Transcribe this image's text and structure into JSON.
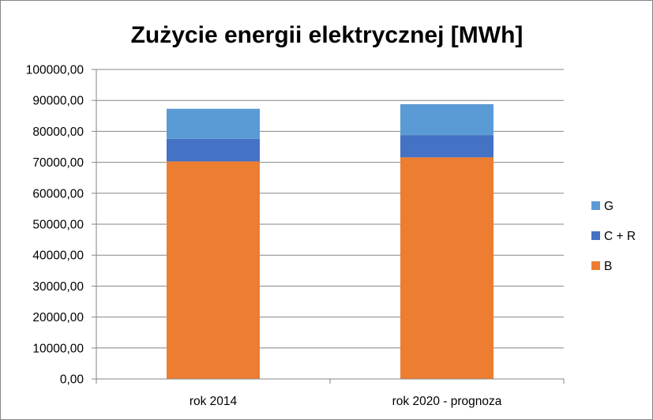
{
  "chart_data": {
    "type": "bar",
    "stacked": true,
    "title": "Zużycie energii elektrycznej [MWh]",
    "xlabel": "",
    "ylabel": "",
    "categories": [
      "rok 2014",
      "rok 2020 - prognoza"
    ],
    "series": [
      {
        "name": "B",
        "color": "#ED7D31",
        "values": [
          70300,
          71600
        ]
      },
      {
        "name": "C + R",
        "color": "#4472C4",
        "values": [
          7300,
          7200
        ]
      },
      {
        "name": "G",
        "color": "#5B9BD5",
        "values": [
          9700,
          10000
        ]
      }
    ],
    "ylim": [
      0,
      100000
    ],
    "y_ticks": [
      "0,00",
      "10000,00",
      "20000,00",
      "30000,00",
      "40000,00",
      "50000,00",
      "60000,00",
      "70000,00",
      "80000,00",
      "90000,00",
      "100000,00"
    ],
    "grid": true,
    "legend_position": "right",
    "legend_order": [
      "G",
      "C + R",
      "B"
    ],
    "colors": {
      "grid": "#868686",
      "axis": "#868686",
      "frame": "#868686"
    }
  }
}
